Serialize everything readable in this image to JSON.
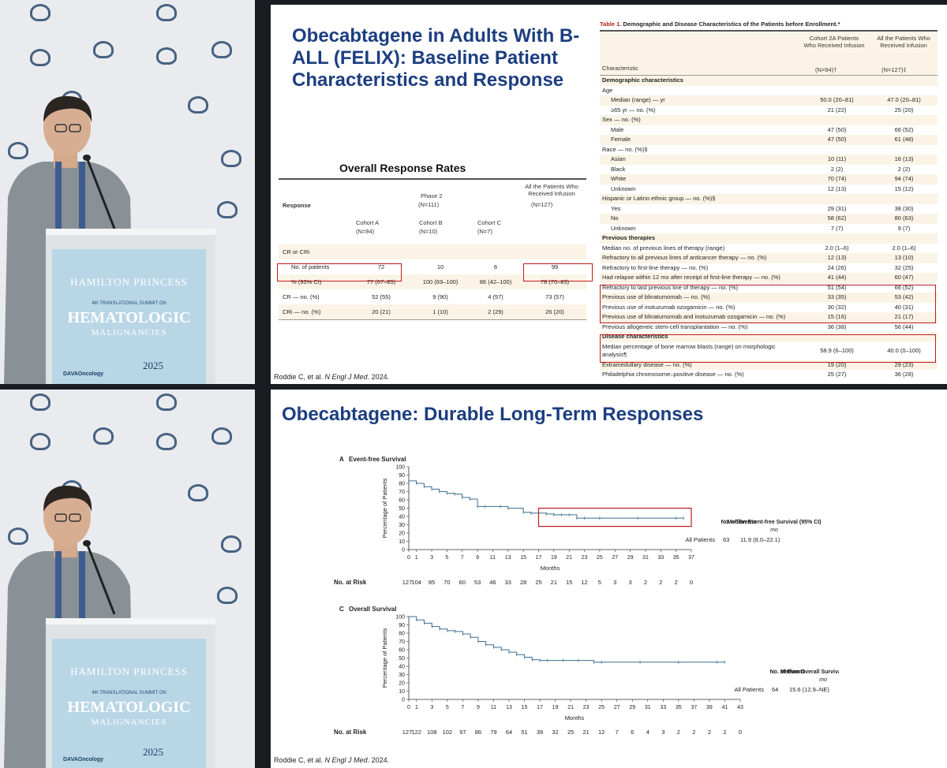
{
  "slide1": {
    "title": "Obecabtagene in Adults With B-ALL (FELIX): Baseline Patient Characteristics and Response",
    "orr_title": "Overall Response Rates",
    "orr_head": {
      "response": "Response",
      "phase2": "Phase 2",
      "phase2_n": "(N=111)",
      "all": "All the Patients Who Received Infusion",
      "all_n": "(N=127)",
      "cohortA": "Cohort A",
      "cohortA_n": "(N=94)",
      "cohortB": "Cohort B",
      "cohortB_n": "(N=10)",
      "cohortC": "Cohort C",
      "cohortC_n": "(N=7)"
    },
    "orr_rows": [
      {
        "label": "CR or CRi",
        "a": "",
        "b": "",
        "c": "",
        "all": "",
        "indent": false,
        "shade": true
      },
      {
        "label": "No. of patients",
        "a": "72",
        "b": "10",
        "c": "6",
        "all": "99",
        "indent": true,
        "shade": false
      },
      {
        "label": "% (95% CI)",
        "a": "77 (67–85)",
        "b": "100 (69–100)",
        "c": "86 (42–100)",
        "all": "78 (70–85)",
        "indent": true,
        "shade": true
      },
      {
        "label": "CR — no. (%)",
        "a": "52 (55)",
        "b": "9 (90)",
        "c": "4 (57)",
        "all": "73 (57)",
        "indent": false,
        "shade": false
      },
      {
        "label": "CRi — no. (%)",
        "a": "20 (21)",
        "b": "1 (10)",
        "c": "2 (29)",
        "all": "26 (20)",
        "indent": false,
        "shade": true
      }
    ],
    "t1_caption_label": "Table 1.",
    "t1_caption": "Demographic and Disease Characteristics of the Patients before Enrollment.*",
    "t1_head": {
      "char": "Characteristic",
      "c2a": "Cohort 2A Patients Who Received Infusion",
      "c2a_n": "(N=94)†",
      "all": "All the Patients Who Received Infusion",
      "all_n": "(N=127)‡"
    },
    "t1_rows": [
      [
        "Demographic characteristics",
        "",
        "",
        "sec"
      ],
      [
        "Age",
        "",
        "",
        ""
      ],
      [
        "Median (range) — yr",
        "50.0 (20–81)",
        "47.0 (20–81)",
        "ind"
      ],
      [
        "≥65 yr — no. (%)",
        "21 (22)",
        "25 (20)",
        "ind"
      ],
      [
        "Sex — no. (%)",
        "",
        "",
        ""
      ],
      [
        "Male",
        "47 (50)",
        "66 (52)",
        "ind"
      ],
      [
        "Female",
        "47 (50)",
        "61 (48)",
        "ind"
      ],
      [
        "Race — no. (%)§",
        "",
        "",
        ""
      ],
      [
        "Asian",
        "10 (11)",
        "16 (13)",
        "ind"
      ],
      [
        "Black",
        "2 (2)",
        "2 (2)",
        "ind"
      ],
      [
        "White",
        "70 (74)",
        "94 (74)",
        "ind"
      ],
      [
        "Unknown",
        "12 (13)",
        "15 (12)",
        "ind"
      ],
      [
        "Hispanic or Latino ethnic group — no. (%)§",
        "",
        "",
        ""
      ],
      [
        "Yes",
        "29 (31)",
        "38 (30)",
        "ind"
      ],
      [
        "No",
        "58 (62)",
        "80 (63)",
        "ind"
      ],
      [
        "Unknown",
        "7 (7)",
        "9 (7)",
        "ind"
      ],
      [
        "Previous therapies",
        "",
        "",
        "sec"
      ],
      [
        "Median no. of previous lines of therapy (range)",
        "2.0 (1–6)",
        "2.0 (1–6)",
        ""
      ],
      [
        "Refractory to all previous lines of anticancer therapy — no. (%)",
        "12 (13)",
        "13 (10)",
        ""
      ],
      [
        "Refractory to first-line therapy — no. (%)",
        "24 (26)",
        "32 (25)",
        ""
      ],
      [
        "Had relapse within 12 mo after receipt of first-line therapy — no. (%)",
        "41 (44)",
        "60 (47)",
        ""
      ],
      [
        "Refractory to last previous line of therapy — no. (%)",
        "51 (54)",
        "66 (52)",
        ""
      ],
      [
        "Previous use of blinatumomab — no. (%)",
        "33 (35)",
        "53 (42)",
        ""
      ],
      [
        "Previous use of inotuzumab ozogamicin — no. (%)",
        "30 (32)",
        "40 (31)",
        ""
      ],
      [
        "Previous use of blinatumomab and inotuzumab ozogamicin — no. (%)",
        "15 (16)",
        "21 (17)",
        ""
      ],
      [
        "Previous allogeneic stem-cell transplantation — no. (%)",
        "36 (38)",
        "56 (44)",
        ""
      ],
      [
        "Disease characteristics",
        "",
        "",
        "sec"
      ],
      [
        "Median percentage of bone marrow blasts (range) on morphologic analysis¶",
        "58.9 (6–100)",
        "40.0 (0–100)",
        ""
      ],
      [
        "Extramedullary disease — no. (%)",
        "19 (20)",
        "29 (23)",
        ""
      ],
      [
        "Philadelphia chromosome–positive disease — no. (%)",
        "25 (27)",
        "36 (28)",
        ""
      ]
    ],
    "citation_pre": "Roddie C, et al. ",
    "citation_journal": "N Engl J Med",
    "citation_post": ". 2024."
  },
  "slide2": {
    "title": "Obecabtagene: Durable Long-Term Responses",
    "citation_pre": "Roddie C, et al. ",
    "citation_journal": "N Engl J Med",
    "citation_post": ". 2024."
  },
  "podium": {
    "brand": "HAMILTON PRINCESS",
    "summit": "4th TRANSLATIONAL SUMMIT ON",
    "line1": "HEMATOLOGIC",
    "line2": "MALIGNANCIES",
    "sponsor": "DAVAOncology",
    "year": "2025"
  },
  "chart_data": [
    {
      "type": "line",
      "panel": "A",
      "title": "Event-free Survival",
      "ylabel": "Percentage of Patients",
      "xlabel": "Months",
      "ylim": [
        0,
        100
      ],
      "xlim": [
        0,
        37
      ],
      "yticks": [
        0,
        10,
        20,
        30,
        40,
        50,
        60,
        70,
        80,
        90,
        100
      ],
      "xticks": [
        0,
        1,
        3,
        5,
        7,
        9,
        11,
        13,
        15,
        17,
        19,
        21,
        23,
        25,
        27,
        29,
        31,
        33,
        35,
        37
      ],
      "series": [
        {
          "x": [
            0,
            1,
            2,
            3,
            4,
            5,
            6,
            7,
            8,
            9,
            10,
            12,
            13,
            15,
            16,
            17,
            18,
            19,
            20,
            21,
            22,
            23,
            25,
            30,
            35,
            36
          ],
          "y": [
            83,
            80,
            76,
            73,
            70,
            68,
            67,
            63,
            61,
            52,
            52,
            52,
            50,
            45,
            44,
            44,
            43,
            42,
            42,
            42,
            38,
            38,
            38,
            38,
            38,
            38
          ]
        }
      ],
      "risk_label": "No. at Risk",
      "risk": [
        "127",
        "104",
        "85",
        "70",
        "60",
        "53",
        "46",
        "33",
        "28",
        "25",
        "21",
        "15",
        "12",
        "5",
        "3",
        "3",
        "2",
        "2",
        "2",
        "0"
      ],
      "summary_head": [
        "No. of Events",
        "Median Event-free Survival (95% CI)"
      ],
      "summary_unit": "mo",
      "summary_row": {
        "label": "All Patients",
        "events": "63",
        "median": "11.9 (8.0–22.1)"
      }
    },
    {
      "type": "line",
      "panel": "C",
      "title": "Overall Survival",
      "ylabel": "Percentage of Patients",
      "xlabel": "Months",
      "ylim": [
        0,
        100
      ],
      "xlim": [
        0,
        43
      ],
      "yticks": [
        0,
        10,
        20,
        30,
        40,
        50,
        60,
        70,
        80,
        90,
        100
      ],
      "xticks": [
        0,
        1,
        3,
        5,
        7,
        9,
        11,
        13,
        15,
        17,
        19,
        21,
        23,
        25,
        27,
        29,
        31,
        33,
        35,
        37,
        39,
        41,
        43
      ],
      "series": [
        {
          "x": [
            0,
            1,
            2,
            3,
            4,
            5,
            6,
            7,
            8,
            9,
            10,
            11,
            12,
            13,
            14,
            15,
            16,
            17,
            18,
            20,
            22,
            24,
            25,
            30,
            35,
            40,
            41
          ],
          "y": [
            100,
            96,
            92,
            88,
            85,
            83,
            82,
            79,
            75,
            70,
            66,
            63,
            60,
            57,
            54,
            51,
            48,
            47,
            47,
            47,
            47,
            45,
            45,
            45,
            45,
            45,
            45
          ]
        }
      ],
      "risk_label": "No. at Risk",
      "risk": [
        "127",
        "122",
        "108",
        "102",
        "97",
        "86",
        "79",
        "64",
        "51",
        "39",
        "32",
        "25",
        "21",
        "12",
        "7",
        "6",
        "4",
        "3",
        "2",
        "2",
        "2",
        "2",
        "0"
      ],
      "summary_head": [
        "No. of Events",
        "Median Overall Survival (95% CI)"
      ],
      "summary_unit": "mo",
      "summary_row": {
        "label": "All Patients",
        "events": "64",
        "median": "15.6 (12.9–NE)"
      }
    }
  ]
}
